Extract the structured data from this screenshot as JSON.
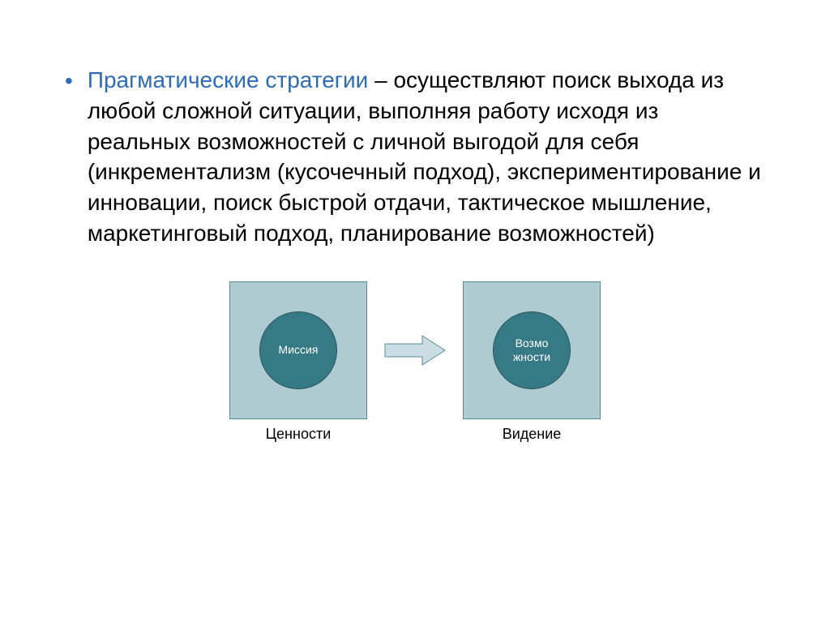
{
  "bullet": {
    "marker": "•",
    "marker_color": "#2d6bb5",
    "highlight_text": "Прагматические стратегии",
    "highlight_color": "#2d6bb5",
    "body_text": " – осуществляют поиск выхода из любой сложной ситуации, выполняя работу исходя из реальных возможностей с личной выгодой для себя (инкрементализм (кусочечный подход), экспериментирование и инновации, поиск быстрой отдачи, тактическое мышление, маркетинговый подход, планирование возможностей)",
    "body_color": "#000000",
    "font_size": 28
  },
  "diagram": {
    "type": "flowchart",
    "background_color": "#ffffff",
    "nodes": [
      {
        "id": "left",
        "box_fill": "#aecbd1",
        "box_border": "#5a8a9a",
        "box_size": 170,
        "circle_fill": "#357a85",
        "circle_border": "#2a5560",
        "circle_size": 96,
        "circle_text": "Миссия",
        "circle_text_color": "#ffffff",
        "label": "Ценности",
        "label_color": "#000000",
        "label_fontsize": 18
      },
      {
        "id": "right",
        "box_fill": "#aecbd1",
        "box_border": "#5a8a9a",
        "box_size": 170,
        "circle_fill": "#357a85",
        "circle_border": "#2a5560",
        "circle_size": 96,
        "circle_text": "Возмо\nжности",
        "circle_text_color": "#ffffff",
        "label": "Видение",
        "label_color": "#000000",
        "label_fontsize": 18
      }
    ],
    "arrow": {
      "fill": "#c9dde2",
      "stroke": "#5a8a9a",
      "width": 78,
      "height": 40
    }
  }
}
